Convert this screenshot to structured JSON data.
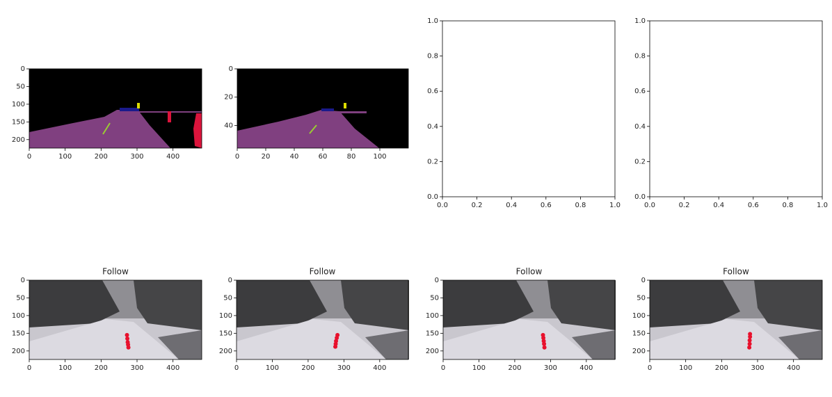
{
  "chart_data": [
    {
      "type": "image",
      "xlim": [
        0,
        480
      ],
      "ylim": [
        224,
        0
      ],
      "xticks": [
        0,
        100,
        200,
        300,
        400
      ],
      "yticks": [
        0,
        50,
        100,
        150,
        200
      ]
    },
    {
      "type": "image",
      "xlim": [
        0,
        120
      ],
      "ylim": [
        56,
        0
      ],
      "xticks": [
        0,
        20,
        40,
        60,
        80,
        100
      ],
      "yticks": [
        0,
        20,
        40
      ]
    },
    {
      "type": "empty",
      "xlim": [
        0,
        1
      ],
      "ylim": [
        0,
        1
      ],
      "xticks": [
        {
          "value": 0,
          "label": "0.0"
        },
        {
          "value": 0.2,
          "label": "0.2"
        },
        {
          "value": 0.4,
          "label": "0.4"
        },
        {
          "value": 0.6,
          "label": "0.6"
        },
        {
          "value": 0.8,
          "label": "0.8"
        },
        {
          "value": 1,
          "label": "1.0"
        }
      ],
      "yticks": [
        {
          "value": 0,
          "label": "0.0"
        },
        {
          "value": 0.2,
          "label": "0.2"
        },
        {
          "value": 0.4,
          "label": "0.4"
        },
        {
          "value": 0.6,
          "label": "0.6"
        },
        {
          "value": 0.8,
          "label": "0.8"
        },
        {
          "value": 1,
          "label": "1.0"
        }
      ]
    },
    {
      "type": "empty",
      "xlim": [
        0,
        1
      ],
      "ylim": [
        0,
        1
      ],
      "xticks": [
        {
          "value": 0,
          "label": "0.0"
        },
        {
          "value": 0.2,
          "label": "0.2"
        },
        {
          "value": 0.4,
          "label": "0.4"
        },
        {
          "value": 0.6,
          "label": "0.6"
        },
        {
          "value": 0.8,
          "label": "0.8"
        },
        {
          "value": 1,
          "label": "1.0"
        }
      ],
      "yticks": [
        {
          "value": 0,
          "label": "0.0"
        },
        {
          "value": 0.2,
          "label": "0.2"
        },
        {
          "value": 0.4,
          "label": "0.4"
        },
        {
          "value": 0.6,
          "label": "0.6"
        },
        {
          "value": 0.8,
          "label": "0.8"
        },
        {
          "value": 1,
          "label": "1.0"
        }
      ]
    },
    {
      "type": "image",
      "title": "Follow",
      "xlim": [
        0,
        480
      ],
      "ylim": [
        224,
        0
      ],
      "xticks": [
        0,
        100,
        200,
        300,
        400
      ],
      "yticks": [
        0,
        50,
        100,
        150,
        200
      ],
      "series": [
        {
          "color": "#e8112d",
          "x": [
            272,
            273,
            274,
            275,
            276
          ],
          "values": [
            155,
            165,
            175,
            182,
            190
          ]
        }
      ]
    },
    {
      "type": "image",
      "title": "Follow",
      "xlim": [
        0,
        480
      ],
      "ylim": [
        224,
        0
      ],
      "xticks": [
        0,
        100,
        200,
        300,
        400
      ],
      "yticks": [
        0,
        50,
        100,
        150,
        200
      ],
      "series": [
        {
          "color": "#e8112d",
          "x": [
            282,
            280,
            278,
            277,
            276
          ],
          "values": [
            155,
            163,
            172,
            180,
            188
          ]
        }
      ]
    },
    {
      "type": "image",
      "title": "Follow",
      "xlim": [
        0,
        480
      ],
      "ylim": [
        224,
        0
      ],
      "xticks": [
        0,
        100,
        200,
        300,
        400
      ],
      "yticks": [
        0,
        50,
        100,
        150,
        200
      ],
      "series": [
        {
          "color": "#e8112d",
          "x": [
            279,
            280,
            281,
            282,
            283
          ],
          "values": [
            155,
            163,
            172,
            180,
            190
          ]
        }
      ]
    },
    {
      "type": "image",
      "title": "Follow",
      "xlim": [
        0,
        480
      ],
      "ylim": [
        224,
        0
      ],
      "xticks": [
        0,
        100,
        200,
        300,
        400
      ],
      "yticks": [
        0,
        50,
        100,
        150,
        200
      ],
      "series": [
        {
          "color": "#e8112d",
          "x": [
            279,
            279,
            278,
            278,
            277
          ],
          "values": [
            152,
            160,
            170,
            180,
            190
          ]
        }
      ]
    }
  ]
}
